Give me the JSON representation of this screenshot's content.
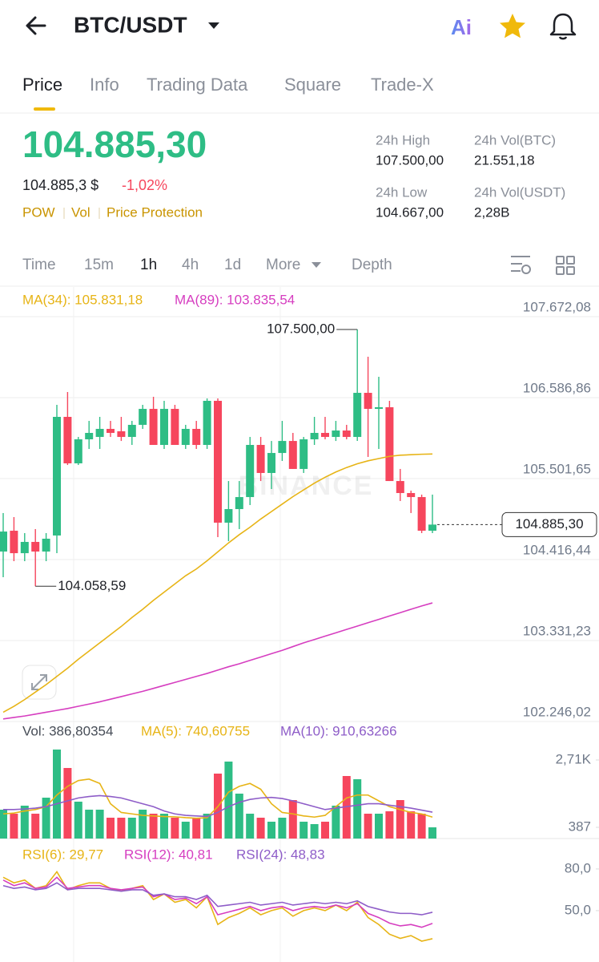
{
  "header": {
    "title": "BTC/USDT",
    "ai": "Ai"
  },
  "tabs": [
    "Price",
    "Info",
    "Trading Data",
    "Square",
    "Trade-X"
  ],
  "price": {
    "last": "104.885,30",
    "fiat": "104.885,3 $",
    "change": "-1,02%",
    "tags": [
      "POW",
      "Vol",
      "Price Protection"
    ]
  },
  "stats": [
    {
      "label": "24h High",
      "value": "107.500,00"
    },
    {
      "label": "24h Vol(BTC)",
      "value": "21.551,18"
    },
    {
      "label": "24h Low",
      "value": "104.667,00"
    },
    {
      "label": "24h Vol(USDT)",
      "value": "2,28B"
    }
  ],
  "intervals": [
    "Time",
    "15m",
    "1h",
    "4h",
    "1d",
    "More",
    "Depth"
  ],
  "chart_data": [
    {
      "type": "candlestick",
      "watermark": "BINANCE",
      "up_color": "#2ebd85",
      "down_color": "#f6465d",
      "open": [
        104524,
        104803,
        104502,
        104653,
        104524,
        104739,
        106329,
        105706,
        106028,
        106060,
        106168,
        106136,
        106060,
        106222,
        106436,
        105953,
        106436,
        105953,
        106168,
        105953,
        106544,
        104911,
        105093,
        105254,
        105953,
        105577,
        105845,
        106006,
        105631,
        106028,
        106114,
        106060,
        106146,
        106060,
        106651,
        106436,
        106458,
        105469,
        105308,
        105254,
        104803
      ],
      "high": [
        105040,
        104986,
        104771,
        104825,
        104771,
        106490,
        106662,
        106060,
        106275,
        106329,
        106275,
        106329,
        106275,
        106490,
        106598,
        106544,
        106490,
        106222,
        106275,
        106576,
        106576,
        105469,
        105469,
        106060,
        106060,
        106006,
        106275,
        106114,
        106060,
        106329,
        106329,
        106275,
        106222,
        107500,
        107135,
        106866,
        106544,
        105631,
        105340,
        105287,
        105287
      ],
      "low": [
        104180,
        104395,
        104395,
        104058.59,
        104395,
        104502,
        105684,
        105684,
        105899,
        105899,
        106060,
        106006,
        105953,
        106168,
        105953,
        105899,
        105953,
        105899,
        105899,
        105899,
        104717,
        104663,
        104825,
        105147,
        105469,
        105362,
        105738,
        105631,
        105577,
        105953,
        106028,
        106006,
        106028,
        106006,
        105792,
        105899,
        105469,
        105201,
        105040,
        104771,
        104771
      ],
      "close": [
        104792,
        104502,
        104653,
        104524,
        104696,
        106329,
        105706,
        106028,
        106114,
        106168,
        106114,
        106060,
        106222,
        106436,
        105953,
        106436,
        105953,
        106168,
        105953,
        106544,
        104911,
        105093,
        105254,
        105953,
        105577,
        105845,
        106006,
        105631,
        106028,
        106114,
        106060,
        106146,
        106060,
        106651,
        106436,
        106458,
        105469,
        105308,
        105254,
        104803,
        104885.3
      ],
      "series": [
        {
          "label": "MA(34): 105.831,18",
          "color": "#e7b416",
          "values": [
            102370,
            102450,
            102540,
            102640,
            102740,
            102850,
            102960,
            103080,
            103190,
            103300,
            103410,
            103520,
            103640,
            103750,
            103870,
            103980,
            104090,
            104200,
            104290,
            104400,
            104520,
            104640,
            104750,
            104850,
            104960,
            105060,
            105160,
            105260,
            105350,
            105440,
            105520,
            105590,
            105650,
            105700,
            105740,
            105770,
            105800,
            105815,
            105822,
            105828,
            105831.18
          ]
        },
        {
          "label": "MA(89): 103.835,54",
          "color": "#d63ec0",
          "values": [
            102280,
            102300,
            102320,
            102345,
            102370,
            102395,
            102420,
            102450,
            102480,
            102510,
            102545,
            102580,
            102615,
            102650,
            102690,
            102730,
            102770,
            102810,
            102850,
            102890,
            102935,
            102980,
            103020,
            103065,
            103110,
            103155,
            103200,
            103250,
            103300,
            103345,
            103390,
            103435,
            103480,
            103525,
            103570,
            103615,
            103660,
            103705,
            103750,
            103795,
            103835.54
          ]
        }
      ],
      "annotations": [
        {
          "value": 107500,
          "label": "107.500,00",
          "index": 33
        },
        {
          "value": 104058.59,
          "label": "104.058,59",
          "index": 3
        }
      ],
      "current": {
        "value": 104885.3,
        "label": "104.885,30"
      },
      "ylim": [
        102246.02,
        108069.6
      ],
      "yticks": [
        {
          "value": 107672.08,
          "label": "107.672,08"
        },
        {
          "value": 106586.86,
          "label": "106.586,86"
        },
        {
          "value": 105501.65,
          "label": "105.501,65"
        },
        {
          "value": 104416.44,
          "label": "104.416,44"
        },
        {
          "value": 103331.23,
          "label": "103.331,23"
        },
        {
          "value": 102246.02,
          "label": "102.246,02"
        }
      ],
      "grid": true
    },
    {
      "type": "bar",
      "legend": "Vol: 386,80354",
      "values": [
        996,
        857,
        1134,
        857,
        1410,
        3070,
        2434,
        1272,
        996,
        996,
        719,
        719,
        719,
        996,
        857,
        857,
        719,
        581,
        719,
        857,
        2240,
        2655,
        1549,
        857,
        719,
        581,
        719,
        1327,
        581,
        498,
        581,
        1134,
        2157,
        2046,
        857,
        857,
        940,
        1327,
        940,
        857,
        386.80354
      ],
      "series": [
        {
          "label": "MA(5): 740,60755",
          "color": "#e7b416",
          "values": [
            850,
            880,
            950,
            1000,
            1100,
            1500,
            1800,
            2000,
            2050,
            1900,
            1200,
            900,
            850,
            800,
            780,
            760,
            750,
            720,
            700,
            720,
            1100,
            1600,
            1800,
            1900,
            1700,
            1200,
            900,
            850,
            780,
            740,
            800,
            1100,
            1400,
            1500,
            1500,
            1300,
            1100,
            1000,
            900,
            850,
            740.60755
          ]
        },
        {
          "label": "MA(10): 910,63266",
          "color": "#8e5dc8",
          "values": [
            1000,
            1000,
            1020,
            1050,
            1100,
            1200,
            1300,
            1400,
            1450,
            1480,
            1450,
            1400,
            1300,
            1200,
            1100,
            950,
            850,
            800,
            780,
            760,
            900,
            1100,
            1250,
            1350,
            1400,
            1420,
            1380,
            1300,
            1200,
            1100,
            1000,
            1050,
            1100,
            1150,
            1200,
            1200,
            1150,
            1100,
            1050,
            980,
            910.63266
          ]
        }
      ],
      "ylim": [
        0,
        3899
      ],
      "yticks": [
        {
          "value": 2710,
          "label": "2,71K"
        },
        387
      ]
    },
    {
      "type": "line",
      "series": [
        {
          "label": "RSI(6): 29,77",
          "color": "#e7b416",
          "values": [
            74,
            70,
            72,
            66,
            68,
            78,
            65,
            68,
            70,
            70,
            66,
            64,
            66,
            68,
            58,
            62,
            56,
            58,
            52,
            60,
            40,
            45,
            48,
            52,
            47,
            50,
            52,
            46,
            50,
            52,
            50,
            54,
            50,
            56,
            45,
            40,
            33,
            30,
            32,
            28,
            29.77
          ]
        },
        {
          "label": "RSI(12): 40,81",
          "color": "#d63ec0",
          "values": [
            72,
            68,
            70,
            66,
            67,
            74,
            66,
            67,
            68,
            68,
            66,
            65,
            66,
            67,
            60,
            62,
            58,
            59,
            55,
            60,
            47,
            49,
            51,
            53,
            50,
            52,
            53,
            50,
            52,
            53,
            52,
            54,
            52,
            55,
            48,
            45,
            41,
            39,
            40,
            38,
            40.81
          ]
        },
        {
          "label": "RSI(24): 48,83",
          "color": "#8e5dc8",
          "values": [
            68,
            66,
            67,
            65,
            66,
            70,
            65,
            66,
            66,
            66,
            65,
            64,
            65,
            65,
            61,
            62,
            60,
            60,
            58,
            61,
            53,
            54,
            55,
            56,
            54,
            55,
            56,
            54,
            55,
            56,
            55,
            56,
            55,
            57,
            53,
            51,
            49,
            48,
            48,
            47,
            48.83
          ]
        }
      ],
      "ylim": [
        13,
        100
      ],
      "yticks": [
        {
          "value": 80,
          "label": "80,0"
        },
        {
          "value": 50,
          "label": "50,0"
        }
      ]
    }
  ]
}
